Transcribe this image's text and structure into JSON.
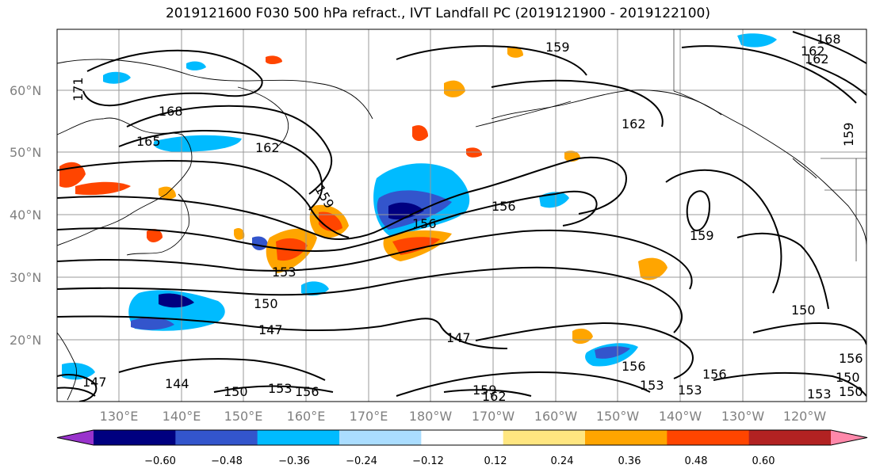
{
  "title": "2019121600 F030 500 hPa refract., IVT Landfall PC (2019121900 - 2019122100)",
  "lat_ticks": [
    "60°N",
    "50°N",
    "40°N",
    "30°N",
    "20°N"
  ],
  "lon_ticks": [
    "130°E",
    "140°E",
    "150°E",
    "160°E",
    "170°E",
    "180°W",
    "170°W",
    "160°W",
    "150°W",
    "140°W",
    "130°W",
    "120°W"
  ],
  "colorbar": {
    "colors": [
      "#9933cc",
      "#000080",
      "#3355cc",
      "#00bbff",
      "#aaddff",
      "#ffffff",
      "#ffe680",
      "#ffa500",
      "#ff4500",
      "#b22222",
      "#ff88aa"
    ],
    "tick_labels": [
      "−0.60",
      "−0.48",
      "−0.36",
      "−0.24",
      "−0.12",
      "0.12",
      "0.24",
      "0.36",
      "0.48",
      "0.60"
    ]
  },
  "contour_labels": [
    "171",
    "168",
    "165",
    "162",
    "159",
    "156",
    "153",
    "150",
    "147",
    "144",
    "162",
    "159",
    "156",
    "153",
    "162",
    "159",
    "150",
    "156",
    "153",
    "153",
    "156",
    "150",
    "147",
    "147",
    "150",
    "153",
    "156",
    "153",
    "150",
    "156",
    "159",
    "162",
    "159",
    "162",
    "168",
    "159"
  ]
}
